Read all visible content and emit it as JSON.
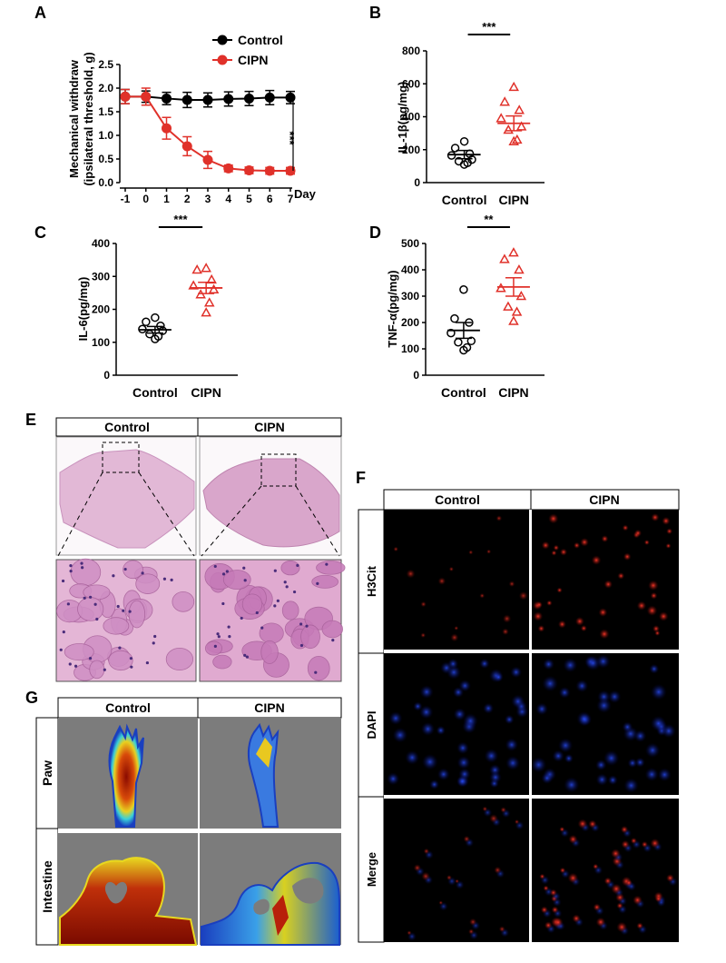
{
  "panel_labels": {
    "a": "A",
    "b": "B",
    "c": "C",
    "d": "D",
    "e": "E",
    "f": "F",
    "g": "G"
  },
  "chart_data": [
    {
      "id": "A",
      "type": "line",
      "x": [
        -1,
        0,
        1,
        2,
        3,
        4,
        5,
        6,
        7
      ],
      "xticks": [
        "-1",
        "0",
        "1",
        "2",
        "3",
        "4",
        "5",
        "6",
        "7"
      ],
      "xunit": "Day",
      "ylabel_line1": "Mechanical withdraw",
      "ylabel_line2": "(ipsilateral threshold, g)",
      "ylim": [
        0,
        2.5
      ],
      "yticks": [
        "0.0",
        "0.5",
        "1.0",
        "1.5",
        "2.0",
        "2.5"
      ],
      "series": [
        {
          "name": "Control",
          "color": "#000000",
          "values": [
            1.82,
            1.82,
            1.78,
            1.75,
            1.75,
            1.77,
            1.78,
            1.8,
            1.8
          ],
          "err": [
            0.15,
            0.12,
            0.13,
            0.16,
            0.15,
            0.15,
            0.15,
            0.15,
            0.13
          ]
        },
        {
          "name": "CIPN",
          "color": "#e0312a",
          "values": [
            1.82,
            1.82,
            1.15,
            0.77,
            0.48,
            0.3,
            0.26,
            0.25,
            0.25
          ],
          "err": [
            0.15,
            0.18,
            0.23,
            0.2,
            0.18,
            0.07,
            0.07,
            0.07,
            0.07
          ]
        }
      ],
      "significance": "***"
    },
    {
      "id": "B",
      "type": "scatter",
      "categories": [
        "Control",
        "CIPN"
      ],
      "ylabel": "IL-1β(pg/mg)",
      "ylim": [
        0,
        800
      ],
      "yticks": [
        "0",
        "200",
        "400",
        "600",
        "800"
      ],
      "groups": [
        {
          "values": [
            250,
            210,
            175,
            165,
            140,
            130,
            120,
            110
          ],
          "mean": 170,
          "sem": 25
        },
        {
          "values": [
            580,
            490,
            440,
            390,
            340,
            320,
            260,
            250
          ],
          "mean": 360,
          "sem": 45
        }
      ],
      "significance": "***"
    },
    {
      "id": "C",
      "type": "scatter",
      "categories": [
        "Control",
        "CIPN"
      ],
      "ylabel": "IL-6(pg/mg)",
      "ylim": [
        0,
        400
      ],
      "yticks": [
        "0",
        "100",
        "200",
        "300",
        "400"
      ],
      "groups": [
        {
          "values": [
            175,
            162,
            150,
            140,
            135,
            125,
            118,
            110
          ],
          "mean": 138,
          "sem": 10
        },
        {
          "values": [
            325,
            320,
            290,
            272,
            260,
            245,
            220,
            190
          ],
          "mean": 265,
          "sem": 17
        }
      ],
      "significance": "***"
    },
    {
      "id": "D",
      "type": "scatter",
      "categories": [
        "Control",
        "CIPN"
      ],
      "ylabel": "TNF-α(pg/mg)",
      "ylim": [
        0,
        500
      ],
      "yticks": [
        "0",
        "100",
        "200",
        "300",
        "400",
        "500"
      ],
      "groups": [
        {
          "values": [
            325,
            215,
            200,
            160,
            130,
            125,
            105,
            95
          ],
          "mean": 170,
          "sem": 30
        },
        {
          "values": [
            465,
            440,
            400,
            330,
            300,
            260,
            240,
            205
          ],
          "mean": 335,
          "sem": 35
        }
      ],
      "significance": "**"
    }
  ],
  "panel_e": {
    "col1": "Control",
    "col2": "CIPN"
  },
  "panel_f": {
    "col1": "Control",
    "col2": "CIPN",
    "row1": "H3Cit",
    "row2": "DAPI",
    "row3": "Merge"
  },
  "panel_g": {
    "col1": "Control",
    "col2": "CIPN",
    "row1": "Paw",
    "row2": "Intestine"
  }
}
